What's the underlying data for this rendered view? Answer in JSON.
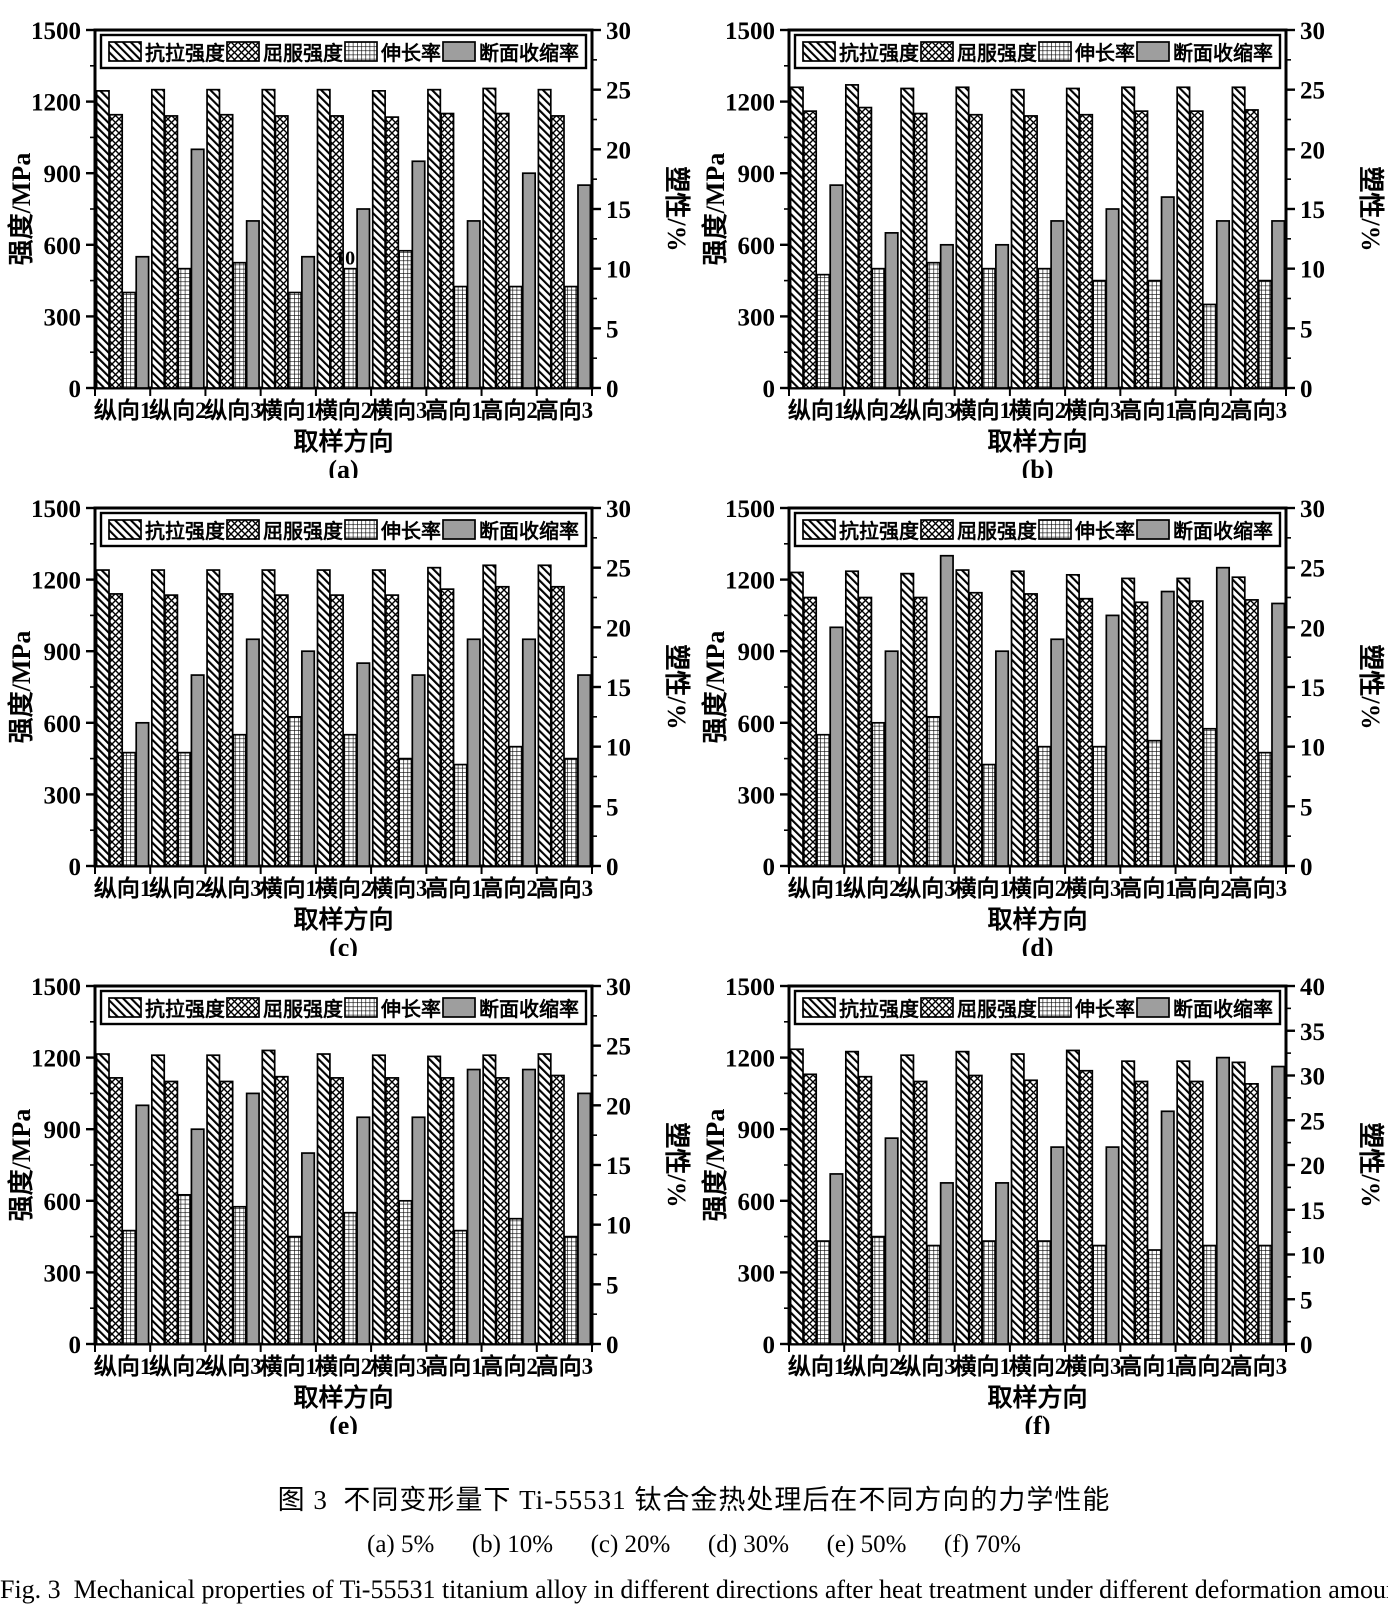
{
  "figure": {
    "caption_zh": "图 3  不同变形量下 Ti-55531 钛合金热处理后在不同方向的力学性能",
    "caption_sub": "(a) 5%      (b) 10%      (c) 20%      (d) 30%      (e) 50%      (f) 70%",
    "caption_en": "Fig. 3  Mechanical properties of Ti-55531 titanium alloy in different directions after heat treatment under different deformation amounts"
  },
  "colors": {
    "bar_solid_gray": "#9e9e9e",
    "stroke": "#000000",
    "background": "#ffffff"
  },
  "chart_data": [
    {
      "id": "a",
      "label": "(a)",
      "type": "bar",
      "categories": [
        "纵向1",
        "纵向2",
        "纵向3",
        "横向1",
        "横向2",
        "横向3",
        "高向1",
        "高向2",
        "高向3"
      ],
      "xlabel": "取样方向",
      "ylabel_left": "强度/MPa",
      "ylabel_right": "塑性/%",
      "ylim_left": [
        0,
        1500
      ],
      "yticks_left": [
        0,
        300,
        600,
        900,
        1200,
        1500
      ],
      "ylim_right": [
        0,
        30
      ],
      "yticks_right": [
        0,
        5,
        10,
        15,
        20,
        25,
        30
      ],
      "legend_position": "top-inside",
      "series": [
        {
          "name": "抗拉强度",
          "axis": "left",
          "style": "hatch-diagonal",
          "values": [
            1245,
            1250,
            1250,
            1250,
            1250,
            1245,
            1250,
            1255,
            1250
          ]
        },
        {
          "name": "屈服强度",
          "axis": "left",
          "style": "hatch-cross",
          "values": [
            1145,
            1140,
            1145,
            1140,
            1140,
            1135,
            1150,
            1150,
            1140
          ]
        },
        {
          "name": "伸长率",
          "axis": "right",
          "style": "hatch-grid",
          "values": [
            8,
            10,
            10.5,
            8,
            10,
            11.5,
            8.5,
            8.5,
            8.5
          ]
        },
        {
          "name": "断面收缩率",
          "axis": "right",
          "style": "solid-gray",
          "values": [
            11,
            20,
            14,
            11,
            15,
            19,
            14,
            18,
            17
          ]
        }
      ],
      "annotations": [
        {
          "series_index": 2,
          "category_index": 4,
          "text": "10"
        }
      ]
    },
    {
      "id": "b",
      "label": "(b)",
      "type": "bar",
      "categories": [
        "纵向1",
        "纵向2",
        "纵向3",
        "横向1",
        "横向2",
        "横向3",
        "高向1",
        "高向2",
        "高向3"
      ],
      "xlabel": "取样方向",
      "ylabel_left": "强度/MPa",
      "ylabel_right": "塑性/%",
      "ylim_left": [
        0,
        1500
      ],
      "yticks_left": [
        0,
        300,
        600,
        900,
        1200,
        1500
      ],
      "ylim_right": [
        0,
        30
      ],
      "yticks_right": [
        0,
        5,
        10,
        15,
        20,
        25,
        30
      ],
      "legend_position": "top-inside",
      "series": [
        {
          "name": "抗拉强度",
          "axis": "left",
          "style": "hatch-diagonal",
          "values": [
            1260,
            1270,
            1255,
            1260,
            1250,
            1255,
            1260,
            1260,
            1260
          ]
        },
        {
          "name": "屈服强度",
          "axis": "left",
          "style": "hatch-cross",
          "values": [
            1160,
            1175,
            1150,
            1145,
            1140,
            1145,
            1160,
            1160,
            1165
          ]
        },
        {
          "name": "伸长率",
          "axis": "right",
          "style": "hatch-grid",
          "values": [
            9.5,
            10,
            10.5,
            10,
            10,
            9,
            9,
            7,
            9
          ]
        },
        {
          "name": "断面收缩率",
          "axis": "right",
          "style": "solid-gray",
          "values": [
            17,
            13,
            12,
            12,
            14,
            15,
            16,
            14,
            14
          ]
        }
      ],
      "annotations": []
    },
    {
      "id": "c",
      "label": "(c)",
      "type": "bar",
      "categories": [
        "纵向1",
        "纵向2",
        "纵向3",
        "横向1",
        "横向2",
        "横向3",
        "高向1",
        "高向2",
        "高向3"
      ],
      "xlabel": "取样方向",
      "ylabel_left": "强度/MPa",
      "ylabel_right": "塑性/%",
      "ylim_left": [
        0,
        1500
      ],
      "yticks_left": [
        0,
        300,
        600,
        900,
        1200,
        1500
      ],
      "ylim_right": [
        0,
        30
      ],
      "yticks_right": [
        0,
        5,
        10,
        15,
        20,
        25,
        30
      ],
      "legend_position": "top-inside",
      "series": [
        {
          "name": "抗拉强度",
          "axis": "left",
          "style": "hatch-diagonal",
          "values": [
            1240,
            1240,
            1240,
            1240,
            1240,
            1240,
            1250,
            1260,
            1260
          ]
        },
        {
          "name": "屈服强度",
          "axis": "left",
          "style": "hatch-cross",
          "values": [
            1140,
            1135,
            1140,
            1135,
            1135,
            1135,
            1160,
            1170,
            1170
          ]
        },
        {
          "name": "伸长率",
          "axis": "right",
          "style": "hatch-grid",
          "values": [
            9.5,
            9.5,
            11,
            12.5,
            11,
            9,
            8.5,
            10,
            9
          ]
        },
        {
          "name": "断面收缩率",
          "axis": "right",
          "style": "solid-gray",
          "values": [
            12,
            16,
            19,
            18,
            17,
            16,
            19,
            19,
            16
          ]
        }
      ],
      "annotations": []
    },
    {
      "id": "d",
      "label": "(d)",
      "type": "bar",
      "categories": [
        "纵向1",
        "纵向2",
        "纵向3",
        "横向1",
        "横向2",
        "横向3",
        "高向1",
        "高向2",
        "高向3"
      ],
      "xlabel": "取样方向",
      "ylabel_left": "强度/MPa",
      "ylabel_right": "塑性/%",
      "ylim_left": [
        0,
        1500
      ],
      "yticks_left": [
        0,
        300,
        600,
        900,
        1200,
        1500
      ],
      "ylim_right": [
        0,
        30
      ],
      "yticks_right": [
        0,
        5,
        10,
        15,
        20,
        25,
        30
      ],
      "legend_position": "top-inside",
      "series": [
        {
          "name": "抗拉强度",
          "axis": "left",
          "style": "hatch-diagonal",
          "values": [
            1230,
            1235,
            1225,
            1240,
            1235,
            1220,
            1205,
            1205,
            1210
          ]
        },
        {
          "name": "屈服强度",
          "axis": "left",
          "style": "hatch-cross",
          "values": [
            1125,
            1125,
            1125,
            1145,
            1140,
            1120,
            1105,
            1110,
            1115
          ]
        },
        {
          "name": "伸长率",
          "axis": "right",
          "style": "hatch-grid",
          "values": [
            11,
            12,
            12.5,
            8.5,
            10,
            10,
            10.5,
            11.5,
            9.5
          ]
        },
        {
          "name": "断面收缩率",
          "axis": "right",
          "style": "solid-gray",
          "values": [
            20,
            18,
            26,
            18,
            19,
            21,
            23,
            25,
            22
          ]
        }
      ],
      "annotations": []
    },
    {
      "id": "e",
      "label": "(e)",
      "type": "bar",
      "categories": [
        "纵向1",
        "纵向2",
        "纵向3",
        "横向1",
        "横向2",
        "横向3",
        "高向1",
        "高向2",
        "高向3"
      ],
      "xlabel": "取样方向",
      "ylabel_left": "强度/MPa",
      "ylabel_right": "塑性/%",
      "ylim_left": [
        0,
        1500
      ],
      "yticks_left": [
        0,
        300,
        600,
        900,
        1200,
        1500
      ],
      "ylim_right": [
        0,
        30
      ],
      "yticks_right": [
        0,
        5,
        10,
        15,
        20,
        25,
        30
      ],
      "legend_position": "top-inside",
      "series": [
        {
          "name": "抗拉强度",
          "axis": "left",
          "style": "hatch-diagonal",
          "values": [
            1215,
            1210,
            1210,
            1230,
            1215,
            1210,
            1205,
            1210,
            1215
          ]
        },
        {
          "name": "屈服强度",
          "axis": "left",
          "style": "hatch-cross",
          "values": [
            1115,
            1100,
            1100,
            1120,
            1115,
            1115,
            1115,
            1115,
            1125
          ]
        },
        {
          "name": "伸长率",
          "axis": "right",
          "style": "hatch-grid",
          "values": [
            9.5,
            12.5,
            11.5,
            9,
            11,
            12,
            9.5,
            10.5,
            9
          ]
        },
        {
          "name": "断面收缩率",
          "axis": "right",
          "style": "solid-gray",
          "values": [
            20,
            18,
            21,
            16,
            19,
            19,
            23,
            23,
            21
          ]
        }
      ],
      "annotations": []
    },
    {
      "id": "f",
      "label": "(f)",
      "type": "bar",
      "categories": [
        "纵向1",
        "纵向2",
        "纵向3",
        "横向1",
        "横向2",
        "横向3",
        "高向1",
        "高向2",
        "高向3"
      ],
      "xlabel": "取样方向",
      "ylabel_left": "强度/MPa",
      "ylabel_right": "塑性/%",
      "ylim_left": [
        0,
        1500
      ],
      "yticks_left": [
        0,
        300,
        600,
        900,
        1200,
        1500
      ],
      "ylim_right": [
        0,
        40
      ],
      "yticks_right": [
        0,
        5,
        10,
        15,
        20,
        25,
        30,
        35,
        40
      ],
      "legend_position": "top-inside",
      "series": [
        {
          "name": "抗拉强度",
          "axis": "left",
          "style": "hatch-diagonal",
          "values": [
            1235,
            1225,
            1210,
            1225,
            1215,
            1230,
            1185,
            1185,
            1180
          ]
        },
        {
          "name": "屈服强度",
          "axis": "left",
          "style": "hatch-cross",
          "values": [
            1130,
            1120,
            1100,
            1125,
            1105,
            1145,
            1100,
            1100,
            1090
          ]
        },
        {
          "name": "伸长率",
          "axis": "right",
          "style": "hatch-grid",
          "values": [
            11.5,
            12,
            11,
            11.5,
            11.5,
            11,
            10.5,
            11,
            11
          ]
        },
        {
          "name": "断面收缩率",
          "axis": "right",
          "style": "solid-gray",
          "values": [
            19,
            23,
            18,
            18,
            22,
            22,
            26,
            32,
            31
          ]
        }
      ],
      "annotations": []
    }
  ]
}
